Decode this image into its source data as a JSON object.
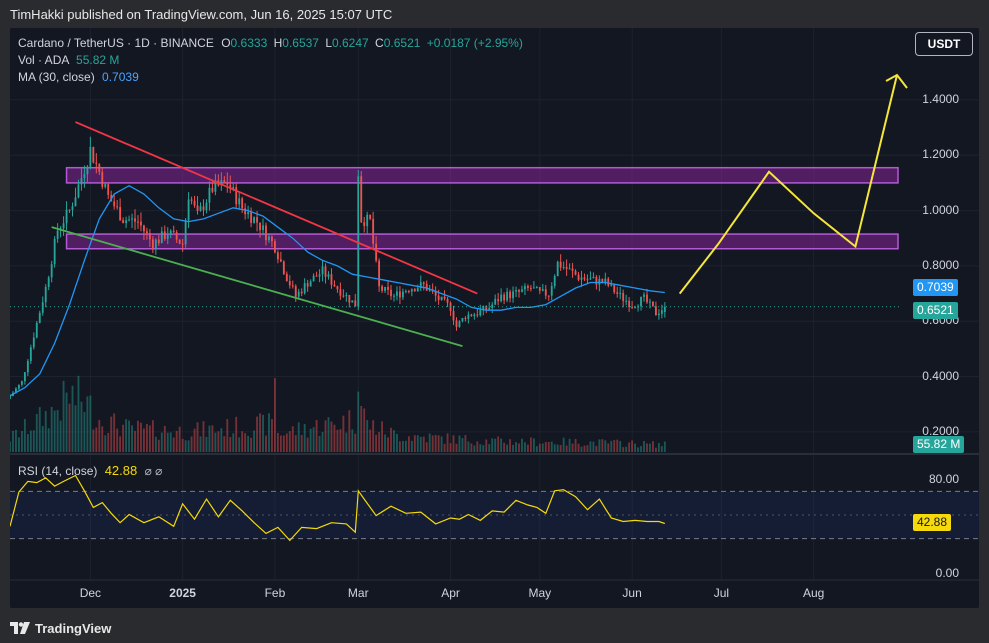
{
  "header": {
    "publisher_line": "TimHakki published on TradingView.com, Jun 16, 2025 15:07 UTC"
  },
  "legend": {
    "symbol": "Cardano / TetherUS · 1D · BINANCE",
    "o_label": "O",
    "o_value": "0.6333",
    "h_label": "H",
    "h_value": "0.6537",
    "l_label": "L",
    "l_value": "0.6247",
    "c_label": "C",
    "c_value": "0.6521",
    "change": "+0.0187 (+2.95%)",
    "vol_label": "Vol · ADA",
    "vol_value": "55.82 M",
    "ma_label": "MA (30, close)",
    "ma_value": "0.7039",
    "rsi_label": "RSI (14, close)",
    "rsi_value": "42.88",
    "rsi_extra": "⌀ ⌀"
  },
  "currency_button": "USDT",
  "tags": {
    "ma_tag": "0.7039",
    "price_tag": "0.6521",
    "volume_tag": "55.82 M",
    "rsi_tag": "42.88"
  },
  "footer": {
    "brand": "TradingView"
  },
  "colors": {
    "background": "#131722",
    "up": "#26a69a",
    "down": "#ef5350",
    "ma": "#2196f3",
    "rsi": "#f5d90a",
    "zone": "#9c27b0",
    "resistance": "#f23645",
    "support": "#4caf50",
    "projection": "#f5e63a"
  },
  "chart_data": [
    {
      "type": "candlestick",
      "title": "Cardano / TetherUS · 1D · BINANCE",
      "y_ticks": [
        "1.4000",
        "1.2000",
        "1.0000",
        "0.8000",
        "0.6000",
        "0.4000",
        "0.2000"
      ],
      "y_tick_values": [
        1.4,
        1.2,
        1.0,
        0.8,
        0.6,
        0.4,
        0.2
      ],
      "ylim": [
        0.12,
        1.66
      ],
      "x_labels": [
        "Dec",
        "2025",
        "Feb",
        "Mar",
        "Apr",
        "May",
        "Jun",
        "Jul",
        "Aug"
      ],
      "x_label_days": [
        27,
        58,
        89,
        117,
        148,
        178,
        209,
        239,
        270
      ],
      "xlim": [
        0,
        299
      ],
      "price_path": {
        "days": [
          0,
          4,
          8,
          12,
          16,
          20,
          24,
          27,
          30,
          33,
          38,
          43,
          48,
          53,
          58,
          60,
          63,
          68,
          73,
          78,
          83,
          89,
          93,
          96,
          100,
          105,
          110,
          116,
          117,
          118,
          121,
          124,
          129,
          134,
          139,
          144,
          148,
          150,
          153,
          157,
          161,
          165,
          170,
          175,
          178,
          181,
          184,
          187,
          191,
          195,
          200,
          205,
          209,
          213,
          217,
          220
        ],
        "closes": [
          0.33,
          0.38,
          0.55,
          0.72,
          0.93,
          1.0,
          1.12,
          1.22,
          1.14,
          1.05,
          0.97,
          0.96,
          0.88,
          0.92,
          0.88,
          1.06,
          0.98,
          1.08,
          1.1,
          1.01,
          0.96,
          0.87,
          0.76,
          0.69,
          0.74,
          0.78,
          0.72,
          0.66,
          1.14,
          0.97,
          0.96,
          0.72,
          0.69,
          0.72,
          0.73,
          0.68,
          0.65,
          0.58,
          0.62,
          0.63,
          0.65,
          0.69,
          0.7,
          0.72,
          0.7,
          0.7,
          0.81,
          0.79,
          0.76,
          0.75,
          0.74,
          0.69,
          0.66,
          0.68,
          0.63,
          0.6521
        ]
      },
      "ma_30": {
        "days": [
          0,
          5,
          10,
          15,
          20,
          25,
          30,
          35,
          40,
          45,
          50,
          55,
          60,
          65,
          70,
          75,
          80,
          85,
          90,
          95,
          100,
          105,
          110,
          115,
          120,
          125,
          130,
          135,
          140,
          145,
          150,
          155,
          160,
          165,
          170,
          175,
          180,
          185,
          190,
          195,
          200,
          205,
          210,
          215,
          220
        ],
        "values": [
          0.33,
          0.36,
          0.41,
          0.52,
          0.66,
          0.82,
          0.97,
          1.06,
          1.09,
          1.06,
          1.01,
          0.97,
          0.96,
          0.97,
          0.99,
          1.01,
          1.0,
          0.98,
          0.94,
          0.9,
          0.85,
          0.82,
          0.8,
          0.77,
          0.76,
          0.75,
          0.74,
          0.73,
          0.72,
          0.7,
          0.68,
          0.65,
          0.64,
          0.64,
          0.65,
          0.65,
          0.66,
          0.69,
          0.72,
          0.74,
          0.74,
          0.73,
          0.72,
          0.71,
          0.7039
        ]
      },
      "volume": {
        "tag_value": "55.82 M",
        "profile_days": [
          0,
          15,
          20,
          25,
          30,
          40,
          60,
          88,
          89,
          90,
          116,
          117,
          118,
          120,
          130,
          160,
          200,
          220
        ],
        "profile_levels": [
          0.15,
          0.45,
          0.6,
          0.55,
          0.35,
          0.25,
          0.22,
          0.3,
          0.95,
          0.2,
          0.35,
          1.0,
          0.5,
          0.3,
          0.18,
          0.12,
          0.1,
          0.08
        ]
      },
      "zones": [
        {
          "name": "upper resistance zone",
          "low": 1.1,
          "high": 1.155
        },
        {
          "name": "lower resistance zone",
          "low": 0.862,
          "high": 0.915
        }
      ],
      "trendlines": [
        {
          "name": "descending resistance",
          "from": [
            22,
            1.32
          ],
          "to": [
            157,
            0.7
          ]
        },
        {
          "name": "support",
          "from": [
            14,
            0.94
          ],
          "to": [
            152,
            0.51
          ]
        }
      ],
      "projection": {
        "days": [
          225,
          238,
          255,
          270,
          284,
          298
        ],
        "prices": [
          0.7,
          0.88,
          1.14,
          0.99,
          0.87,
          1.49
        ]
      },
      "current_price": 0.6521,
      "ma_current": 0.7039
    },
    {
      "type": "line",
      "title": "RSI (14, close)",
      "y_ticks": [
        "80.00",
        "0.00"
      ],
      "y_tick_values": [
        80,
        0
      ],
      "ylim": [
        -5,
        100
      ],
      "bands": [
        70,
        30
      ],
      "days": [
        0,
        3,
        6,
        9,
        12,
        15,
        18,
        22,
        25,
        28,
        31,
        34,
        37,
        40,
        45,
        50,
        55,
        58,
        62,
        66,
        70,
        74,
        78,
        82,
        86,
        90,
        94,
        98,
        103,
        108,
        113,
        116,
        117,
        119,
        123,
        128,
        133,
        138,
        143,
        148,
        151,
        154,
        158,
        162,
        166,
        170,
        174,
        177,
        180,
        183,
        186,
        190,
        194,
        198,
        202,
        206,
        210,
        214,
        218,
        220
      ],
      "values": [
        42,
        68,
        80,
        76,
        83,
        73,
        80,
        82,
        72,
        55,
        62,
        50,
        45,
        49,
        45,
        47,
        42,
        58,
        48,
        62,
        50,
        61,
        55,
        42,
        36,
        38,
        30,
        38,
        40,
        42,
        44,
        34,
        72,
        62,
        51,
        56,
        53,
        51,
        44,
        46,
        48,
        49,
        47,
        52,
        54,
        61,
        60,
        55,
        53,
        69,
        73,
        64,
        56,
        62,
        49,
        43,
        47,
        43,
        46,
        42.88
      ]
    }
  ]
}
